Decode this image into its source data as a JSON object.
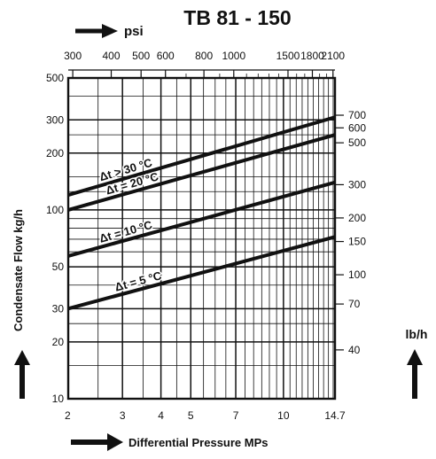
{
  "chart_data": {
    "type": "line",
    "title": "TB 81 - 150",
    "xlabel": "Differential Pressure MPs",
    "ylabel": "Condensate Flow kg/h",
    "top_axis_label": "psi",
    "right_axis_label": "lb/h",
    "xscale": "log",
    "yscale": "log",
    "xlim": [
      2,
      14.7
    ],
    "ylim": [
      10,
      500
    ],
    "x_ticks": [
      "2",
      "3",
      "4",
      "5",
      "7",
      "10",
      "14.7"
    ],
    "y_ticks": [
      "10",
      "20",
      "30",
      "50",
      "100",
      "200",
      "300",
      "500"
    ],
    "top_ticks": [
      "300",
      "400",
      "500",
      "600",
      "800",
      "1000",
      "1500",
      "1800",
      "2100"
    ],
    "right_ticks": [
      "700",
      "600",
      "500",
      "300",
      "200",
      "150",
      "100",
      "70",
      "40"
    ],
    "grid": true,
    "series": [
      {
        "name": "Δt > 30 °C",
        "x": [
          2,
          14.7
        ],
        "y": [
          120,
          310
        ]
      },
      {
        "name": "Δt = 20 °C",
        "x": [
          2,
          14.7
        ],
        "y": [
          100,
          250
        ]
      },
      {
        "name": "Δt = 10 °C",
        "x": [
          2,
          14.7
        ],
        "y": [
          57,
          140
        ]
      },
      {
        "name": "Δt = 5 °C",
        "x": [
          2,
          14.7
        ],
        "y": [
          30,
          72
        ]
      }
    ]
  }
}
